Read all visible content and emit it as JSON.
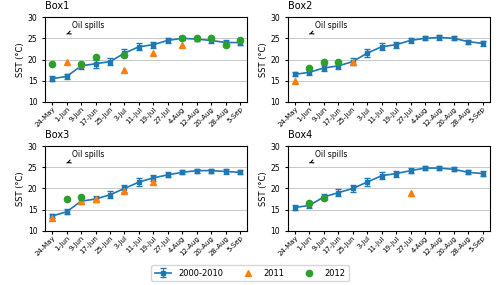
{
  "chart_data": [
    {
      "type": "line",
      "title": "Box1",
      "categories": [
        "24-May",
        "1-Jun",
        "9-Jun",
        "17-Jun",
        "25-Jun",
        "3-Jul",
        "11-Jul",
        "19-Jul",
        "27-Jul",
        "4-Aug",
        "12-Aug",
        "20-Aug",
        "28-Aug",
        "5-Sep"
      ],
      "ylabel": "SST (°C)",
      "ylim": [
        10,
        30
      ],
      "yticks": [
        10,
        15,
        20,
        25,
        30
      ],
      "grid": "y",
      "legend": "lower center",
      "annotations": [
        {
          "text": "Oil spills",
          "x": "1-Jun"
        }
      ],
      "series": [
        {
          "name": "2000-2010",
          "values": [
            15.5,
            16.0,
            18.5,
            19.0,
            19.5,
            21.5,
            23.0,
            23.5,
            24.5,
            25.0,
            24.8,
            24.5,
            24.0,
            24.0
          ],
          "errors": [
            0.5,
            0.7,
            0.7,
            0.9,
            0.8,
            0.9,
            0.8,
            0.7,
            0.6,
            0.5,
            0.5,
            0.5,
            0.5,
            0.5
          ],
          "marker": "square",
          "line_style": "solid"
        },
        {
          "name": "2011",
          "values": [
            null,
            19.5,
            19.0,
            null,
            null,
            17.5,
            null,
            21.5,
            null,
            23.5,
            null,
            null,
            null,
            null
          ],
          "marker": "triangle",
          "line_style": "none"
        },
        {
          "name": "2012",
          "values": [
            19.0,
            null,
            19.0,
            20.5,
            null,
            21.0,
            null,
            null,
            null,
            25.0,
            25.0,
            25.0,
            23.5,
            24.5
          ],
          "marker": "circle",
          "line_style": "none"
        }
      ]
    },
    {
      "type": "line",
      "title": "Box2",
      "categories": [
        "24-May",
        "1-Jun",
        "9-Jun",
        "17-Jun",
        "25-Jun",
        "3-Jul",
        "11-Jul",
        "19-Jul",
        "27-Jul",
        "4-Aug",
        "12-Aug",
        "20-Aug",
        "28-Aug",
        "5-Sep"
      ],
      "ylabel": "SST (°C)",
      "ylim": [
        10,
        30
      ],
      "yticks": [
        10,
        15,
        20,
        25,
        30
      ],
      "grid": "y",
      "legend": "lower center",
      "annotations": [
        {
          "text": "Oil spills",
          "x": "1-Jun"
        }
      ],
      "series": [
        {
          "name": "2000-2010",
          "values": [
            16.5,
            17.0,
            18.0,
            18.5,
            19.5,
            21.5,
            23.0,
            23.5,
            24.5,
            25.0,
            25.2,
            25.0,
            24.2,
            23.8
          ],
          "errors": [
            0.5,
            0.6,
            0.7,
            0.8,
            0.8,
            0.9,
            0.8,
            0.7,
            0.6,
            0.5,
            0.6,
            0.5,
            0.5,
            0.5
          ],
          "marker": "square",
          "line_style": "solid"
        },
        {
          "name": "2011",
          "values": [
            15.0,
            null,
            null,
            null,
            19.5,
            null,
            null,
            null,
            null,
            null,
            null,
            null,
            null,
            null
          ],
          "marker": "triangle",
          "line_style": "none"
        },
        {
          "name": "2012",
          "values": [
            null,
            18.0,
            19.5,
            19.5,
            null,
            null,
            null,
            null,
            null,
            null,
            null,
            null,
            null,
            null
          ],
          "marker": "circle",
          "line_style": "none"
        }
      ]
    },
    {
      "type": "line",
      "title": "Box3",
      "categories": [
        "24-May",
        "1-Jun",
        "9-Jun",
        "17-Jun",
        "25-Jun",
        "3-Jul",
        "11-Jul",
        "19-Jul",
        "27-Jul",
        "4-Aug",
        "12-Aug",
        "20-Aug",
        "28-Aug",
        "5-Sep"
      ],
      "ylabel": "SST (°C)",
      "ylim": [
        10,
        30
      ],
      "yticks": [
        10,
        15,
        20,
        25,
        30
      ],
      "grid": "y",
      "legend": "lower center",
      "annotations": [
        {
          "text": "Oil spills",
          "x": "1-Jun"
        }
      ],
      "series": [
        {
          "name": "2000-2010",
          "values": [
            13.5,
            14.5,
            17.0,
            17.5,
            18.5,
            20.0,
            21.5,
            22.5,
            23.2,
            23.8,
            24.2,
            24.2,
            24.0,
            23.8
          ],
          "errors": [
            0.5,
            0.6,
            0.7,
            0.8,
            0.8,
            0.9,
            0.9,
            0.7,
            0.6,
            0.5,
            0.5,
            0.5,
            0.5,
            0.5
          ],
          "marker": "square",
          "line_style": "solid"
        },
        {
          "name": "2011",
          "values": [
            13.0,
            null,
            17.0,
            17.5,
            null,
            19.5,
            null,
            21.5,
            null,
            null,
            null,
            null,
            null,
            null
          ],
          "marker": "triangle",
          "line_style": "none"
        },
        {
          "name": "2012",
          "values": [
            null,
            17.5,
            18.0,
            null,
            null,
            null,
            null,
            null,
            null,
            null,
            null,
            null,
            null,
            null
          ],
          "marker": "circle",
          "line_style": "none"
        }
      ]
    },
    {
      "type": "line",
      "title": "Box4",
      "categories": [
        "24-May",
        "1-Jun",
        "9-Jun",
        "17-Jun",
        "25-Jun",
        "3-Jul",
        "11-Jul",
        "19-Jul",
        "27-Jul",
        "4-Aug",
        "12-Aug",
        "20-Aug",
        "28-Aug",
        "5-Sep"
      ],
      "ylabel": "SST (°C)",
      "ylim": [
        10,
        30
      ],
      "yticks": [
        10,
        15,
        20,
        25,
        30
      ],
      "grid": "y",
      "legend": "lower center",
      "annotations": [
        {
          "text": "Oil spills",
          "x": "1-Jun"
        }
      ],
      "series": [
        {
          "name": "2000-2010",
          "values": [
            15.5,
            16.0,
            18.0,
            19.0,
            20.0,
            21.5,
            23.0,
            23.5,
            24.2,
            24.8,
            24.8,
            24.5,
            23.8,
            23.5
          ],
          "errors": [
            0.5,
            0.6,
            0.7,
            0.8,
            0.8,
            0.9,
            0.8,
            0.7,
            0.6,
            0.5,
            0.5,
            0.5,
            0.5,
            0.5
          ],
          "marker": "square",
          "line_style": "solid"
        },
        {
          "name": "2011",
          "values": [
            null,
            null,
            null,
            null,
            null,
            null,
            null,
            null,
            19.0,
            null,
            null,
            null,
            null,
            null
          ],
          "marker": "triangle",
          "line_style": "none"
        },
        {
          "name": "2012",
          "values": [
            null,
            16.5,
            17.8,
            null,
            null,
            null,
            null,
            null,
            null,
            null,
            null,
            null,
            null,
            null
          ],
          "marker": "circle",
          "line_style": "none"
        }
      ]
    }
  ]
}
